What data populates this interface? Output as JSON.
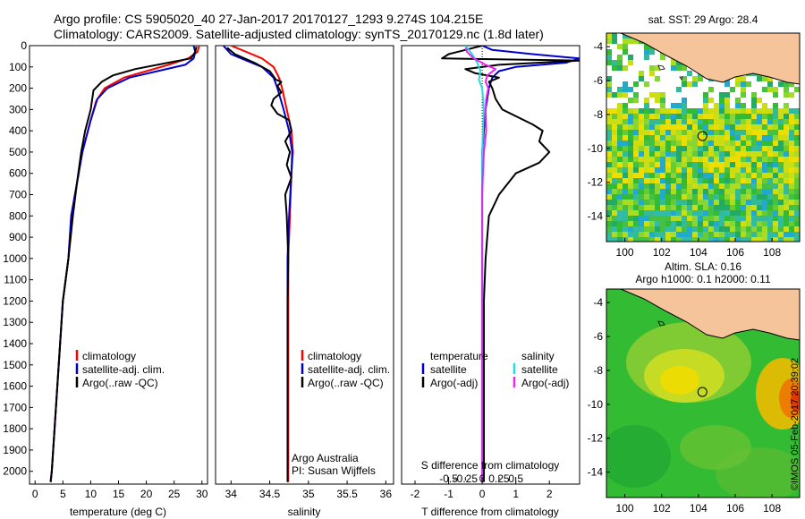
{
  "header": {
    "line1": "Argo profile: CS 5905020_40 27-Jan-2017 20170127_1293 9.274S 104.215E",
    "line2": "Climatology: CARS2009. Satellite-adjusted climatology: synTS_20170129.nc (1.8d later)"
  },
  "colors": {
    "climatology": "#ff0000",
    "satellite": "#0000cc",
    "argo": "#000000",
    "salinity_satellite": "#22dddd",
    "salinity_argo": "#ee22ee",
    "land": "#f5c49a"
  },
  "chart_data": [
    {
      "type": "line",
      "panel": "temperature",
      "xlabel": "temperature (deg C)",
      "ylabel": "",
      "xlim": [
        -1,
        31
      ],
      "ylim": [
        2060,
        0
      ],
      "xticks": [
        0,
        5,
        10,
        15,
        20,
        25,
        30
      ],
      "yticks": [
        0,
        100,
        200,
        300,
        400,
        500,
        600,
        700,
        800,
        900,
        1000,
        1100,
        1200,
        1300,
        1400,
        1500,
        1600,
        1700,
        1800,
        1900,
        2000
      ],
      "legend": [
        "climatology",
        "satellite-adj. clim.",
        "Argo(..raw -QC)"
      ],
      "series": [
        {
          "name": "climatology",
          "color": "#ff0000",
          "points": [
            [
              29.5,
              0
            ],
            [
              29.2,
              30
            ],
            [
              27.5,
              60
            ],
            [
              24,
              90
            ],
            [
              20,
              120
            ],
            [
              16,
              150
            ],
            [
              12.5,
              200
            ],
            [
              11,
              260
            ],
            [
              10,
              350
            ],
            [
              8.5,
              500
            ],
            [
              7.5,
              650
            ],
            [
              6.5,
              800
            ],
            [
              6,
              1000
            ],
            [
              5,
              1200
            ],
            [
              4.5,
              1400
            ],
            [
              4,
              1600
            ],
            [
              3.5,
              1800
            ],
            [
              3,
              2000
            ],
            [
              2.8,
              2050
            ]
          ]
        },
        {
          "name": "satellite-adj. clim.",
          "color": "#0000cc",
          "points": [
            [
              28.5,
              0
            ],
            [
              28.8,
              30
            ],
            [
              28.5,
              60
            ],
            [
              27,
              90
            ],
            [
              22,
              120
            ],
            [
              17,
              150
            ],
            [
              13,
              200
            ],
            [
              11.2,
              250
            ],
            [
              10,
              350
            ],
            [
              8.5,
              500
            ],
            [
              7.5,
              650
            ],
            [
              6.5,
              800
            ],
            [
              6,
              1000
            ],
            [
              5,
              1200
            ],
            [
              4.5,
              1400
            ],
            [
              4,
              1600
            ],
            [
              3.5,
              1800
            ],
            [
              3,
              2000
            ],
            [
              2.8,
              2050
            ]
          ]
        },
        {
          "name": "Argo(..raw -QC)",
          "color": "#000000",
          "points": [
            [
              29,
              5
            ],
            [
              28.8,
              30
            ],
            [
              28,
              60
            ],
            [
              24,
              80
            ],
            [
              18,
              110
            ],
            [
              14,
              140
            ],
            [
              12,
              170
            ],
            [
              10.5,
              210
            ],
            [
              10,
              300
            ],
            [
              9,
              400
            ],
            [
              8.3,
              500
            ],
            [
              7.5,
              650
            ],
            [
              6.8,
              800
            ],
            [
              6,
              1000
            ],
            [
              5,
              1200
            ],
            [
              4.5,
              1400
            ],
            [
              4,
              1600
            ],
            [
              3.5,
              1800
            ],
            [
              3,
              2000
            ],
            [
              2.8,
              2050
            ]
          ]
        }
      ]
    },
    {
      "type": "line",
      "panel": "salinity",
      "xlabel": "salinity",
      "xlim": [
        33.8,
        36.1
      ],
      "ylim": [
        2060,
        0
      ],
      "xticks": [
        34,
        34.5,
        35,
        35.5,
        36
      ],
      "legend": [
        "climatology",
        "satellite-adj. clim.",
        "Argo(..raw -QC)"
      ],
      "annotation": [
        "Argo Australia",
        "PI: Susan Wijffels"
      ],
      "series": [
        {
          "name": "climatology",
          "color": "#ff0000",
          "points": [
            [
              34.0,
              0
            ],
            [
              34.2,
              30
            ],
            [
              34.4,
              60
            ],
            [
              34.55,
              100
            ],
            [
              34.62,
              150
            ],
            [
              34.66,
              200
            ],
            [
              34.72,
              300
            ],
            [
              34.78,
              400
            ],
            [
              34.8,
              500
            ],
            [
              34.78,
              600
            ],
            [
              34.76,
              800
            ],
            [
              34.74,
              1000
            ],
            [
              34.74,
              1200
            ],
            [
              34.74,
              1400
            ],
            [
              34.74,
              1600
            ],
            [
              34.74,
              1800
            ],
            [
              34.74,
              2050
            ]
          ]
        },
        {
          "name": "satellite-adj. clim.",
          "color": "#0000cc",
          "points": [
            [
              33.9,
              0
            ],
            [
              34.0,
              40
            ],
            [
              34.2,
              70
            ],
            [
              34.4,
              100
            ],
            [
              34.55,
              150
            ],
            [
              34.6,
              200
            ],
            [
              34.68,
              300
            ],
            [
              34.75,
              400
            ],
            [
              34.79,
              500
            ],
            [
              34.78,
              600
            ],
            [
              34.75,
              800
            ],
            [
              34.73,
              1000
            ],
            [
              34.73,
              1200
            ],
            [
              34.73,
              1400
            ],
            [
              34.73,
              1600
            ],
            [
              34.73,
              1800
            ],
            [
              34.73,
              2050
            ]
          ]
        },
        {
          "name": "Argo(..raw -QC)",
          "color": "#000000",
          "points": [
            [
              33.95,
              10
            ],
            [
              34.05,
              40
            ],
            [
              34.3,
              80
            ],
            [
              34.5,
              120
            ],
            [
              34.58,
              160
            ],
            [
              34.65,
              170
            ],
            [
              34.6,
              190
            ],
            [
              34.65,
              220
            ],
            [
              34.55,
              250
            ],
            [
              34.52,
              280
            ],
            [
              34.6,
              320
            ],
            [
              34.75,
              350
            ],
            [
              34.78,
              400
            ],
            [
              34.7,
              450
            ],
            [
              34.76,
              500
            ],
            [
              34.72,
              560
            ],
            [
              34.78,
              620
            ],
            [
              34.7,
              700
            ],
            [
              34.72,
              800
            ],
            [
              34.74,
              1000
            ],
            [
              34.73,
              1200
            ],
            [
              34.73,
              1400
            ],
            [
              34.73,
              1600
            ],
            [
              34.73,
              1800
            ],
            [
              34.73,
              2050
            ]
          ]
        }
      ]
    },
    {
      "type": "line",
      "panel": "difference",
      "xlabel": "T difference from climatology",
      "xlabel_top": "S difference from climatology",
      "xlim": [
        -2.4,
        2.9
      ],
      "ylim": [
        2060,
        0
      ],
      "xticks": [
        -2,
        -1,
        0,
        1,
        2
      ],
      "xticks_s": [
        "-0.5",
        "-0.25",
        "0",
        "0.25",
        "0.5"
      ],
      "legend_temperature": {
        "title": "temperature",
        "items": [
          "satellite",
          "Argo(-adj)"
        ]
      },
      "legend_salinity": {
        "title": "salinity",
        "items": [
          "satellite",
          "Argo(-adj)"
        ]
      },
      "series": [
        {
          "name": "temperature satellite",
          "color": "#0000cc",
          "points": [
            [
              0,
              0
            ],
            [
              0.3,
              20
            ],
            [
              1.5,
              40
            ],
            [
              2.9,
              60
            ],
            [
              2.5,
              80
            ],
            [
              1,
              100
            ],
            [
              0.5,
              120
            ],
            [
              0.3,
              150
            ],
            [
              0.2,
              200
            ],
            [
              0.1,
              300
            ],
            [
              0,
              500
            ],
            [
              0,
              1000
            ],
            [
              0,
              1500
            ],
            [
              0,
              2050
            ]
          ]
        },
        {
          "name": "temperature Argo(-adj)",
          "color": "#000000",
          "points": [
            [
              0,
              0
            ],
            [
              -0.5,
              20
            ],
            [
              -1,
              40
            ],
            [
              -1.2,
              60
            ],
            [
              2.9,
              70
            ],
            [
              0.5,
              90
            ],
            [
              -0.5,
              110
            ],
            [
              -0.2,
              130
            ],
            [
              0.5,
              150
            ],
            [
              0.2,
              170
            ],
            [
              0.3,
              200
            ],
            [
              0.4,
              250
            ],
            [
              0.6,
              300
            ],
            [
              1.5,
              370
            ],
            [
              1.8,
              400
            ],
            [
              1.7,
              450
            ],
            [
              2.0,
              500
            ],
            [
              1.7,
              550
            ],
            [
              1.0,
              600
            ],
            [
              0.5,
              700
            ],
            [
              0.2,
              800
            ],
            [
              0.1,
              1000
            ],
            [
              0.05,
              1200
            ],
            [
              0.05,
              1600
            ],
            [
              0.05,
              2050
            ]
          ]
        },
        {
          "name": "salinity satellite",
          "color": "#22dddd",
          "points": [
            [
              -0.5,
              0
            ],
            [
              -0.3,
              40
            ],
            [
              -0.15,
              80
            ],
            [
              -0.05,
              120
            ],
            [
              -0.1,
              160
            ],
            [
              0,
              200
            ],
            [
              0.05,
              300
            ],
            [
              0,
              500
            ],
            [
              0,
              1000
            ],
            [
              0,
              1500
            ],
            [
              0,
              2050
            ]
          ]
        },
        {
          "name": "salinity Argo(-adj)",
          "color": "#ee22ee",
          "points": [
            [
              -0.5,
              10
            ],
            [
              -0.45,
              30
            ],
            [
              -0.25,
              60
            ],
            [
              0.1,
              90
            ],
            [
              0.4,
              110
            ],
            [
              0.15,
              140
            ],
            [
              0.1,
              170
            ],
            [
              0.18,
              200
            ],
            [
              0.12,
              250
            ],
            [
              0.1,
              300
            ],
            [
              0.12,
              400
            ],
            [
              0.05,
              500
            ],
            [
              0.02,
              600
            ],
            [
              0,
              700
            ],
            [
              0,
              800
            ],
            [
              0,
              1000
            ],
            [
              0,
              1200
            ],
            [
              0,
              1400
            ],
            [
              0,
              1600
            ],
            [
              0,
              2050
            ]
          ]
        }
      ]
    },
    {
      "type": "heatmap",
      "panel": "sst_map",
      "title": "sat. SST: 29 Argo: 28.4",
      "xlim": [
        99,
        109.5
      ],
      "ylim": [
        -15.5,
        -3.2
      ],
      "xticks": [
        100,
        102,
        104,
        106,
        108
      ],
      "yticks": [
        -4,
        -6,
        -8,
        -10,
        -12,
        -14
      ],
      "xtick_labels": [
        "100",
        "102",
        "104",
        "106",
        "108"
      ],
      "ytick_labels": [
        "-4",
        "-6",
        "-8",
        "-10",
        "-12",
        "-14"
      ],
      "argo_position": [
        104.215,
        -9.274
      ]
    },
    {
      "type": "heatmap",
      "panel": "sla_map",
      "title": "Altim. SLA: 0.16",
      "subtitle": "Argo h1000: 0.1 h2000: 0.11",
      "xlim": [
        99,
        109.5
      ],
      "ylim": [
        -15.5,
        -3.2
      ],
      "xticks": [
        100,
        102,
        104,
        106,
        108
      ],
      "yticks": [
        -4,
        -6,
        -8,
        -10,
        -12,
        -14
      ],
      "xtick_labels": [
        "100",
        "102",
        "104",
        "106",
        "108"
      ],
      "ytick_labels": [
        "-4",
        "-6",
        "-8",
        "-10",
        "-12",
        "-14"
      ],
      "argo_position": [
        104.215,
        -9.274
      ]
    }
  ],
  "credit": "©IMOS 05-Feb-2017 20:39:02"
}
